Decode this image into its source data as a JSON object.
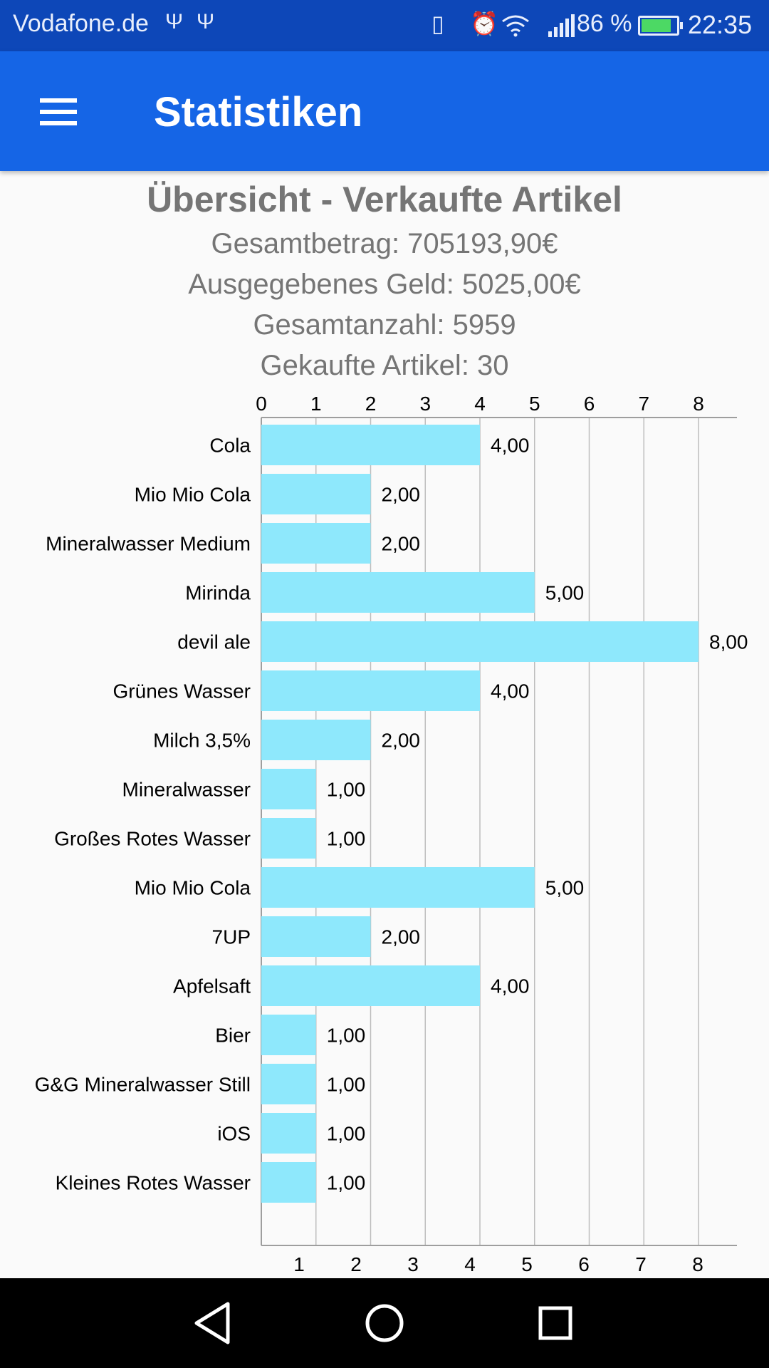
{
  "status_bar": {
    "carrier": "Vodafone.de",
    "usb_icons": [
      "usb-icon",
      "usb-icon"
    ],
    "icons": [
      "vibrate-icon",
      "alarm-icon",
      "wifi-icon",
      "signal-icon"
    ],
    "battery": "86 %",
    "battery_level": 0.86,
    "time": "22:35"
  },
  "app_bar": {
    "menu_icon": "menu-icon",
    "title": "Statistiken"
  },
  "summary": {
    "heading": "Übersicht - Verkaufte Artikel",
    "total_amount": "Gesamtbetrag: 705193,90€",
    "money_spent": "Ausgegebenes Geld: 5025,00€",
    "total_count": "Gesamtanzahl: 5959",
    "items_bought": "Gekaufte Artikel: 30"
  },
  "chart_data": {
    "type": "bar",
    "orientation": "horizontal",
    "categories": [
      "Cola",
      "Mio Mio Cola",
      "Mineralwasser Medium",
      "Mirinda",
      "devil ale",
      "Grünes Wasser",
      "Milch 3,5%",
      "Mineralwasser",
      "Großes Rotes Wasser",
      "Mio Mio Cola",
      "7UP",
      "Apfelsaft",
      "Bier",
      "G&G Mineralwasser Still",
      "iOS",
      "Kleines Rotes Wasser"
    ],
    "values": [
      4,
      2,
      2,
      5,
      8,
      4,
      2,
      1,
      1,
      5,
      2,
      4,
      1,
      1,
      1,
      1
    ],
    "value_labels": [
      "4,00",
      "2,00",
      "2,00",
      "5,00",
      "8,00",
      "4,00",
      "2,00",
      "1,00",
      "1,00",
      "5,00",
      "2,00",
      "4,00",
      "1,00",
      "1,00",
      "1,00",
      "1,00"
    ],
    "top_axis_ticks": [
      "0",
      "1",
      "2",
      "3",
      "4",
      "5",
      "6",
      "7",
      "8"
    ],
    "bottom_axis_ticks": [
      "1",
      "2",
      "3",
      "4",
      "5",
      "6",
      "7",
      "8"
    ],
    "xlim": [
      0,
      8.7
    ],
    "grid": true,
    "bar_color": "#8ee8fc"
  },
  "nav_bar": {
    "back_icon": "back-icon",
    "home_icon": "home-icon",
    "recents_icon": "recents-icon"
  }
}
